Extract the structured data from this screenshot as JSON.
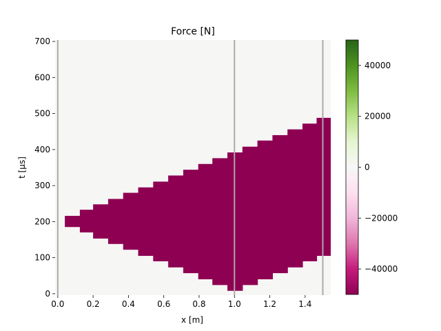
{
  "chart_data": {
    "type": "heatmap",
    "title": "Force [N]",
    "xlabel": "x [m]",
    "ylabel": "t [µs]",
    "xlim": [
      -0.015,
      1.545
    ],
    "ylim": [
      -4,
      704
    ],
    "xticks": [
      0.0,
      0.2,
      0.4,
      0.6,
      0.8,
      1.0,
      1.2,
      1.4
    ],
    "xtick_labels": [
      "0.0",
      "0.2",
      "0.4",
      "0.6",
      "0.8",
      "1.0",
      "1.2",
      "1.4"
    ],
    "yticks": [
      0,
      100,
      200,
      300,
      400,
      500,
      600,
      700
    ],
    "ytick_labels": [
      "0",
      "100",
      "200",
      "300",
      "400",
      "500",
      "600",
      "700"
    ],
    "background_value": 0,
    "background_color": "#f6f6f5",
    "band": {
      "value": -50000,
      "color": "#8e0152",
      "x_edges": [
        0.04,
        0.125,
        0.2,
        0.285,
        0.37,
        0.455,
        0.54,
        0.625,
        0.71,
        0.795,
        0.875,
        0.96,
        1.045,
        1.13,
        1.215,
        1.3,
        1.385,
        1.465,
        1.545
      ],
      "t_low": [
        185,
        170,
        153,
        138,
        122,
        105,
        90,
        73,
        57,
        40,
        24,
        8,
        24,
        40,
        57,
        73,
        90,
        105
      ],
      "t_high": [
        216,
        233,
        248,
        263,
        280,
        295,
        311,
        328,
        344,
        360,
        376,
        392,
        408,
        425,
        440,
        456,
        472,
        488
      ]
    },
    "vlines": [
      0.0,
      1.0,
      1.5
    ],
    "vline_color": "#aaaaaa",
    "colorbar": {
      "min": -50000,
      "max": 50000,
      "ticks": [
        -40000,
        -20000,
        0,
        20000,
        40000
      ],
      "tick_labels": [
        "−40000",
        "−20000",
        "0",
        "20000",
        "40000"
      ],
      "stops": [
        {
          "pos": 0.0,
          "color": "#8e0152"
        },
        {
          "pos": 0.1,
          "color": "#c51b7d"
        },
        {
          "pos": 0.2,
          "color": "#de77ae"
        },
        {
          "pos": 0.3,
          "color": "#f1b6da"
        },
        {
          "pos": 0.4,
          "color": "#fde0ef"
        },
        {
          "pos": 0.5,
          "color": "#f7f7f7"
        },
        {
          "pos": 0.6,
          "color": "#e6f5d0"
        },
        {
          "pos": 0.7,
          "color": "#b8e186"
        },
        {
          "pos": 0.8,
          "color": "#7fbc41"
        },
        {
          "pos": 0.9,
          "color": "#4d9221"
        },
        {
          "pos": 1.0,
          "color": "#276419"
        }
      ]
    }
  }
}
